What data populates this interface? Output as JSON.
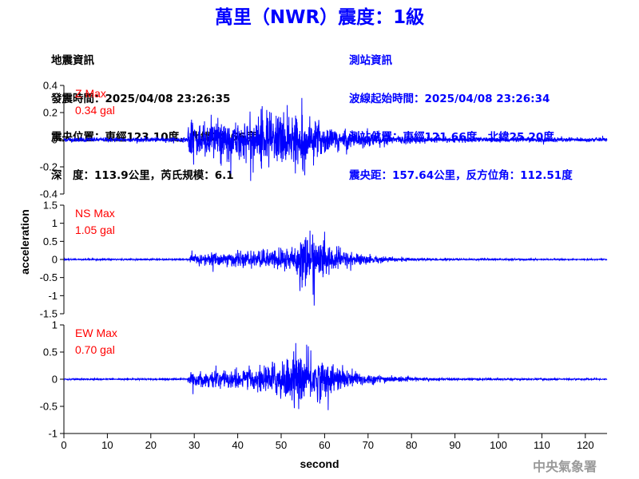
{
  "title": "萬里（NWR）震度：1級",
  "earthquake_info": {
    "heading": "地震資訊",
    "origin_time": "發震時間：2025/04/08 23:26:35",
    "epicenter": "震央位置：東經123.10度，北緯24.66度",
    "depth_magnitude": "深　度：113.9公里，芮氏規模：6.1"
  },
  "station_info": {
    "heading": "測站資訊",
    "wave_start_time": "波線起始時間：2025/04/08 23:26:34",
    "station_location": "測站位置：東經121.66度，北緯25.20度",
    "distance_azimuth": "震央距：157.64公里，反方位角：112.51度"
  },
  "watermark": "中央氣象署",
  "colors": {
    "title": "#0000ff",
    "trace": "#0000ff",
    "max_label": "#ff0000",
    "station_text": "#0000ff"
  },
  "chart_data": {
    "type": "line",
    "xlabel": "second",
    "ylabel": "acceleration",
    "xlim": [
      0,
      125
    ],
    "x_ticks": [
      0,
      10,
      20,
      30,
      40,
      50,
      60,
      70,
      80,
      90,
      100,
      110,
      120
    ],
    "grid": false,
    "panels": [
      {
        "component": "Z",
        "max_label": "Z Max",
        "max_value": "0.34 gal",
        "ylim": [
          -0.4,
          0.4
        ],
        "y_ticks": [
          "0.4",
          "0.2",
          "0",
          "-0.2",
          "-0.4"
        ],
        "y_tick_values": [
          0.4,
          0.2,
          0,
          -0.2,
          -0.4
        ],
        "noise": 0.008,
        "onset": 28.5,
        "envelope": [
          [
            28.5,
            0.12
          ],
          [
            35,
            0.14
          ],
          [
            42,
            0.15
          ],
          [
            47,
            0.24
          ],
          [
            52,
            0.2
          ],
          [
            57,
            0.16
          ],
          [
            62,
            0.09
          ],
          [
            68,
            0.06
          ],
          [
            75,
            0.035
          ],
          [
            90,
            0.02
          ],
          [
            125,
            0.015
          ]
        ]
      },
      {
        "component": "NS",
        "max_label": "NS Max",
        "max_value": "1.05 gal",
        "ylim": [
          -1.5,
          1.5
        ],
        "y_ticks": [
          "1.5",
          "1",
          "0.5",
          "0",
          "-0.5",
          "-1",
          "-1.5"
        ],
        "y_tick_values": [
          1.5,
          1,
          0.5,
          0,
          -0.5,
          -1,
          -1.5
        ],
        "noise": 0.01,
        "onset": 29,
        "envelope": [
          [
            29,
            0.15
          ],
          [
            35,
            0.2
          ],
          [
            42,
            0.22
          ],
          [
            48,
            0.28
          ],
          [
            53,
            0.45
          ],
          [
            56,
            0.85
          ],
          [
            60,
            0.45
          ],
          [
            65,
            0.25
          ],
          [
            70,
            0.12
          ],
          [
            78,
            0.05
          ],
          [
            90,
            0.025
          ],
          [
            125,
            0.015
          ]
        ]
      },
      {
        "component": "EW",
        "max_label": "EW Max",
        "max_value": "0.70 gal",
        "ylim": [
          -1,
          1
        ],
        "y_ticks": [
          "1",
          "0.5",
          "0",
          "-0.5",
          "-1"
        ],
        "y_tick_values": [
          1,
          0.5,
          0,
          -0.5,
          -1
        ],
        "noise": 0.006,
        "onset": 28.5,
        "envelope": [
          [
            28.5,
            0.12
          ],
          [
            35,
            0.16
          ],
          [
            42,
            0.18
          ],
          [
            47,
            0.3
          ],
          [
            52,
            0.42
          ],
          [
            56,
            0.5
          ],
          [
            60,
            0.35
          ],
          [
            65,
            0.2
          ],
          [
            70,
            0.1
          ],
          [
            78,
            0.04
          ],
          [
            90,
            0.02
          ],
          [
            125,
            0.012
          ]
        ]
      }
    ]
  }
}
